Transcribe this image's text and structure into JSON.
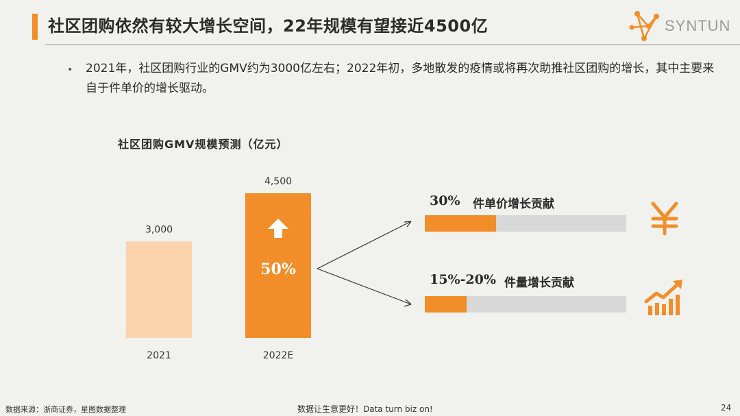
{
  "header": {
    "title": "社区团购依然有较大增长空间，22年规模有望接近4500亿",
    "logo_text": "SYNTUN",
    "accent_color": "#f18e2a"
  },
  "bullet": {
    "text": "2021年，社区团购行业的GMV约为3000亿左右；2022年初，多地散发的疫情或将再次助推社区团购的增长，其中主要来自于件单价的增长驱动。"
  },
  "chart_data": [
    {
      "type": "bar",
      "title": "社区团购GMV规模预测（亿元）",
      "categories": [
        "2021",
        "2022E"
      ],
      "values": [
        3000,
        4500
      ],
      "value_labels": [
        "3,000",
        "4,500"
      ],
      "colors": [
        "#fbd3ac",
        "#f18e2a"
      ],
      "annotation": "50%",
      "annotation_icon": "arrow-up-icon",
      "grid": false
    },
    {
      "type": "bar",
      "orientation": "horizontal",
      "categories": [
        "件单价增长贡献",
        "件量增长贡献"
      ],
      "value_labels": [
        "30%",
        "15%-20%"
      ],
      "values": [
        30,
        17.5
      ],
      "scale_max": 85,
      "icons": [
        "yen-icon",
        "growth-chart-icon"
      ],
      "fill_color": "#f18e2a",
      "track_color": "#d8d8d8"
    }
  ],
  "footer": {
    "source": "数据来源：浙商证券，星图数据整理",
    "slogan": "数据让生意更好！Data turn biz on!",
    "page_number": "24"
  }
}
